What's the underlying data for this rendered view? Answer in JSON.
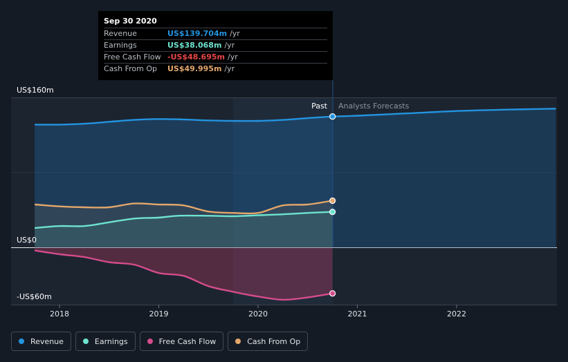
{
  "tooltip": {
    "date": "Sep 30 2020",
    "rows": [
      {
        "label": "Revenue",
        "value": "US$139.704m",
        "unit": "/yr",
        "color": "#2394df"
      },
      {
        "label": "Earnings",
        "value": "US$38.068m",
        "unit": "/yr",
        "color": "#6ee3cf"
      },
      {
        "label": "Free Cash Flow",
        "value": "-US$48.695m",
        "unit": "/yr",
        "color": "#e64646"
      },
      {
        "label": "Cash From Op",
        "value": "US$49.995m",
        "unit": "/yr",
        "color": "#e3a76b"
      }
    ]
  },
  "regions": {
    "past": "Past",
    "forecast": "Analysts Forecasts"
  },
  "chart_data": {
    "type": "area",
    "y_axis": {
      "labels": [
        "US$160m",
        "US$0",
        "-US$60m"
      ],
      "ylim": [
        -60,
        160
      ]
    },
    "x_axis": {
      "ticks": [
        2018,
        2019,
        2020,
        2021,
        2022
      ],
      "xlim": [
        2017.1,
        2023.0
      ]
    },
    "past_end": 2020.75,
    "series": [
      {
        "name": "Revenue",
        "color": "#2394df",
        "points": [
          [
            2017.75,
            131
          ],
          [
            2018.0,
            131
          ],
          [
            2018.25,
            132
          ],
          [
            2018.5,
            134
          ],
          [
            2018.75,
            136
          ],
          [
            2019.0,
            137
          ],
          [
            2019.25,
            136.5
          ],
          [
            2019.5,
            135.5
          ],
          [
            2019.75,
            135
          ],
          [
            2020.0,
            135
          ],
          [
            2020.25,
            136
          ],
          [
            2020.5,
            138
          ],
          [
            2020.75,
            139.7
          ]
        ],
        "forecast": [
          [
            2020.75,
            139.7
          ],
          [
            2021.0,
            140.5
          ],
          [
            2021.5,
            143
          ],
          [
            2022.0,
            145.5
          ],
          [
            2022.5,
            147
          ],
          [
            2023.0,
            148
          ]
        ]
      },
      {
        "name": "Earnings",
        "color": "#6ee3cf",
        "points": [
          [
            2017.75,
            21
          ],
          [
            2018.0,
            23
          ],
          [
            2018.25,
            23
          ],
          [
            2018.5,
            27
          ],
          [
            2018.75,
            31
          ],
          [
            2019.0,
            32
          ],
          [
            2019.2,
            34
          ],
          [
            2019.5,
            34
          ],
          [
            2019.75,
            33.5
          ],
          [
            2020.0,
            34.5
          ],
          [
            2020.25,
            35.5
          ],
          [
            2020.5,
            37
          ],
          [
            2020.75,
            38.1
          ]
        ]
      },
      {
        "name": "Free Cash Flow",
        "color": "#d44c8b",
        "points": [
          [
            2017.75,
            -3
          ],
          [
            2018.0,
            -7
          ],
          [
            2018.25,
            -10
          ],
          [
            2018.5,
            -15.5
          ],
          [
            2018.75,
            -18
          ],
          [
            2019.0,
            -27
          ],
          [
            2019.25,
            -30
          ],
          [
            2019.5,
            -41
          ],
          [
            2019.75,
            -47
          ],
          [
            2020.0,
            -52
          ],
          [
            2020.25,
            -55.5
          ],
          [
            2020.5,
            -53
          ],
          [
            2020.75,
            -48.7
          ]
        ]
      },
      {
        "name": "Cash From Op",
        "color": "#e3a76b",
        "points": [
          [
            2017.75,
            46
          ],
          [
            2018.0,
            44
          ],
          [
            2018.25,
            43
          ],
          [
            2018.5,
            43
          ],
          [
            2018.75,
            47
          ],
          [
            2019.0,
            46
          ],
          [
            2019.25,
            45
          ],
          [
            2019.5,
            38.5
          ],
          [
            2019.75,
            37
          ],
          [
            2020.0,
            37
          ],
          [
            2020.25,
            45
          ],
          [
            2020.5,
            46
          ],
          [
            2020.75,
            50
          ]
        ]
      }
    ],
    "legend": [
      "Revenue",
      "Earnings",
      "Free Cash Flow",
      "Cash From Op"
    ]
  }
}
